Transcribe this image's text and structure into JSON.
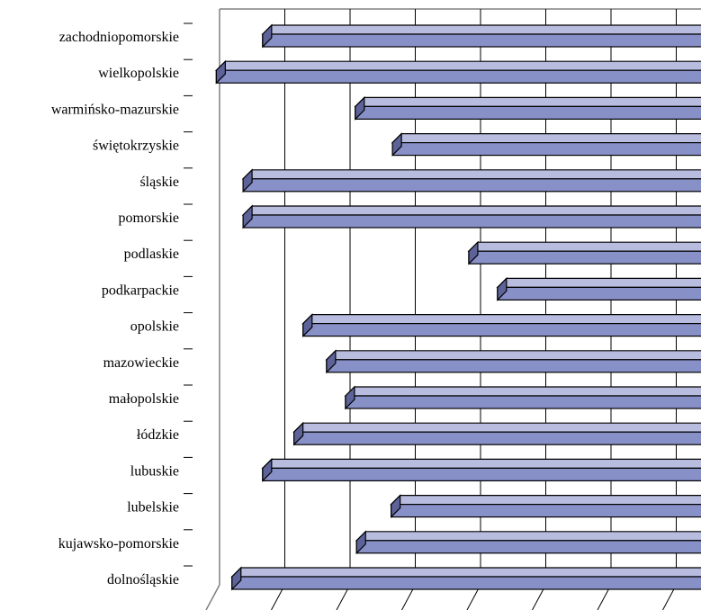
{
  "colors": {
    "bar_front": "#8890c8",
    "bar_top": "#b8bde0",
    "bar_side": "#5d6399",
    "bar_edge": "#000000",
    "grid": "#000000",
    "wall": "#808080",
    "background": "#ffffff"
  },
  "chart_data": {
    "type": "bar",
    "orientation": "horizontal",
    "style": "3d-clustered",
    "categories": [
      "zachodniopomorskie",
      "wielkopolskie",
      "warmińsko-mazurskie",
      "świętokrzyskie",
      "śląskie",
      "pomorskie",
      "podlaskie",
      "podkarpackie",
      "opolskie",
      "mazowieckie",
      "małopolskie",
      "łódzkie",
      "lubuskie",
      "lubelskie",
      "kujawsko-pomorskie",
      "dolnośląskie"
    ],
    "bar_left_start": [
      0.66,
      -0.05,
      2.08,
      2.65,
      0.36,
      0.36,
      3.82,
      4.26,
      1.28,
      1.64,
      1.93,
      1.14,
      0.66,
      2.63,
      2.1,
      0.19
    ],
    "grid": true,
    "axis_tick_labels_visible": false,
    "legend": "none",
    "title": "",
    "xlabel": "",
    "ylabel": ""
  }
}
